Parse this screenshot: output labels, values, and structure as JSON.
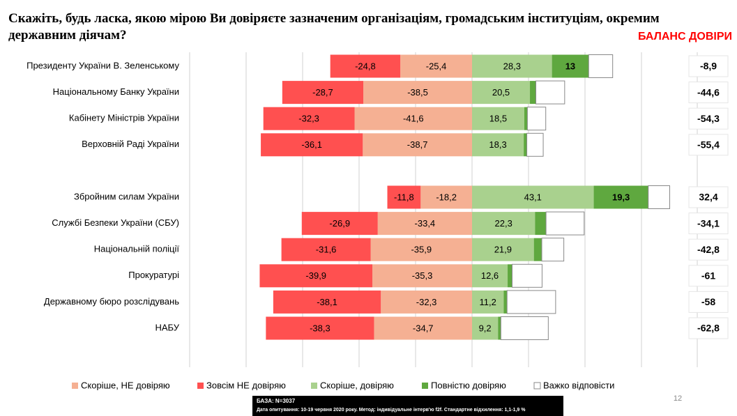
{
  "title": "Скажіть, будь ласка, якою мірою Ви довіряєте зазначеним організаціям, громадським інституціям, окремим державним діячам?",
  "chart_data": {
    "type": "bar",
    "orientation": "horizontal",
    "stacked": "diverging",
    "categories": [
      "Президенту України В. Зеленському",
      "Національному Банку України",
      "Кабінету Міністрів України",
      "Верховній Раді України",
      null,
      "Збройним  силам України",
      "Службі Безпеки України (СБУ)",
      "Національній поліції",
      "Прокуратурі",
      "Державному бюро розслідувань",
      "НАБУ"
    ],
    "series": [
      {
        "name": "Скоріше, НЕ довіряю",
        "color": "#f5b093",
        "values": [
          -25.4,
          -38.5,
          -41.6,
          -38.7,
          null,
          -18.2,
          -33.4,
          -35.9,
          -35.3,
          -32.3,
          -34.7
        ],
        "value_labels": [
          "-25,4",
          "-38,5",
          "-41,6",
          "-38,7",
          null,
          "-18,2",
          "-33,4",
          "-35,9",
          "-35,3",
          "-32,3",
          "-34,7"
        ]
      },
      {
        "name": "Зовсім НЕ довіряю",
        "color": "#ff5050",
        "values": [
          -24.8,
          -28.7,
          -32.3,
          -36.1,
          null,
          -11.8,
          -26.9,
          -31.6,
          -39.9,
          -38.1,
          -38.3
        ],
        "value_labels": [
          "-24,8",
          "-28,7",
          "-32,3",
          "-36,1",
          null,
          "-11,8",
          "-26,9",
          "-31,6",
          "-39,9",
          "-38,1",
          "-38,3"
        ]
      },
      {
        "name": "Скоріше, довіряю",
        "color": "#a9d18e",
        "values": [
          28.3,
          20.5,
          18.5,
          18.3,
          null,
          43.1,
          22.3,
          21.9,
          12.6,
          11.2,
          9.2
        ],
        "value_labels": [
          "28,3",
          "20,5",
          "18,5",
          "18,3",
          null,
          "43,1",
          "22,3",
          "21,9",
          "12,6",
          "11,2",
          "9,2"
        ]
      },
      {
        "name": "Повністю довіряю",
        "color": "#5fa83f",
        "values": [
          13,
          2.1,
          1.1,
          1.1,
          null,
          19.3,
          3.9,
          2.8,
          1.6,
          1.2,
          1
        ],
        "value_labels": [
          "13",
          "2,1",
          "1,1",
          "1,1",
          null,
          "19,3",
          "3,9",
          "2,8",
          "1,6",
          "1,2",
          "1"
        ]
      },
      {
        "name": "Важко відповісти",
        "color": "#ffffff",
        "values": [
          8.5,
          10.2,
          6.5,
          5.8,
          null,
          7.6,
          13.5,
          7.8,
          10.6,
          17.2,
          16.8
        ]
      }
    ],
    "xlim": [
      -100,
      60
    ],
    "xticks": [
      -100,
      -80,
      -60,
      -40,
      -20,
      0,
      20,
      40,
      60
    ],
    "grid": true,
    "balance": {
      "title": "БАЛАНС ДОВІРИ",
      "values": [
        -8.9,
        -44.6,
        -54.3,
        -55.4,
        null,
        32.4,
        -34.1,
        -42.8,
        -61,
        -58,
        -62.8
      ],
      "value_labels": [
        "-8,9",
        "-44,6",
        "-54,3",
        "-55,4",
        null,
        "32,4",
        "-34,1",
        "-42,8",
        "-61",
        "-58",
        "-62,8"
      ]
    }
  },
  "notes": {
    "base": "БАЗА: N=3037",
    "survey": "Дата опитування: 10-19 червня 2020 року. Метод: індивідуальне інтерв'ю f2f. Стандартне відхилення: 1,1-1,9 %",
    "page": "12"
  }
}
